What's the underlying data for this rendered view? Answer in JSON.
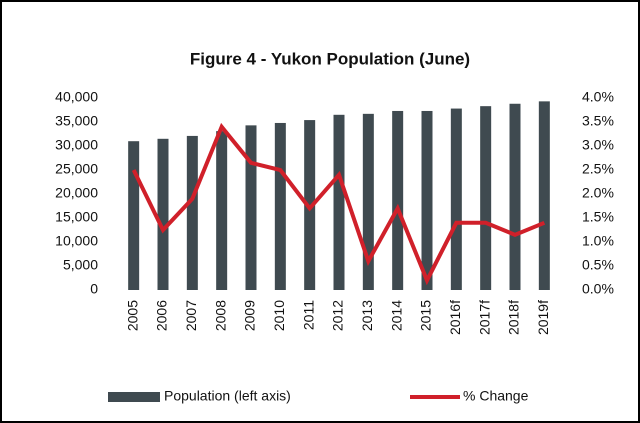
{
  "chart_data": {
    "type": "bar",
    "title": "Figure 4 - Yukon Population (June)",
    "categories": [
      "2005",
      "2006",
      "2007",
      "2008",
      "2009",
      "2010",
      "2011",
      "2012",
      "2013",
      "2014",
      "2015",
      "2016f",
      "2017f",
      "2018f",
      "2019f"
    ],
    "series": [
      {
        "name": "Population (left axis)",
        "color": "#3f4a50",
        "type": "bar",
        "values": [
          31000,
          31500,
          32100,
          33100,
          34300,
          34800,
          35400,
          36500,
          36700,
          37300,
          37300,
          37800,
          38300,
          38800,
          39300
        ]
      },
      {
        "name": "% Change",
        "color": "#d0202a",
        "type": "line",
        "axis": "y2",
        "values": [
          2.5,
          1.25,
          1.9,
          3.4,
          2.65,
          2.5,
          1.7,
          2.4,
          0.6,
          1.7,
          0.2,
          1.4,
          1.4,
          1.15,
          1.4
        ]
      }
    ],
    "ylim": [
      0,
      40000
    ],
    "yticks": [
      0,
      {
        "value": 5000,
        "label": "5,000"
      },
      {
        "value": 10000,
        "label": "10,000"
      },
      {
        "value": 15000,
        "label": "15,000"
      },
      {
        "value": 20000,
        "label": "20,000"
      },
      {
        "value": 25000,
        "label": "25,000"
      },
      {
        "value": 30000,
        "label": "30,000"
      },
      {
        "value": 35000,
        "label": "35,000"
      },
      {
        "value": 40000,
        "label": "40,000"
      }
    ],
    "y2lim": [
      0,
      4
    ],
    "y2ticks": [
      {
        "value": 0,
        "label": "0.0%"
      },
      {
        "value": 0.5,
        "label": "0.5%"
      },
      {
        "value": 1,
        "label": "1.0%"
      },
      {
        "value": 1.5,
        "label": "1.5%"
      },
      {
        "value": 2,
        "label": "2.0%"
      },
      {
        "value": 2.5,
        "label": "2.5%"
      },
      {
        "value": 3,
        "label": "3.0%"
      },
      {
        "value": 3.5,
        "label": "3.5%"
      },
      {
        "value": 4,
        "label": "4.0%"
      }
    ],
    "legend": "bottom"
  }
}
